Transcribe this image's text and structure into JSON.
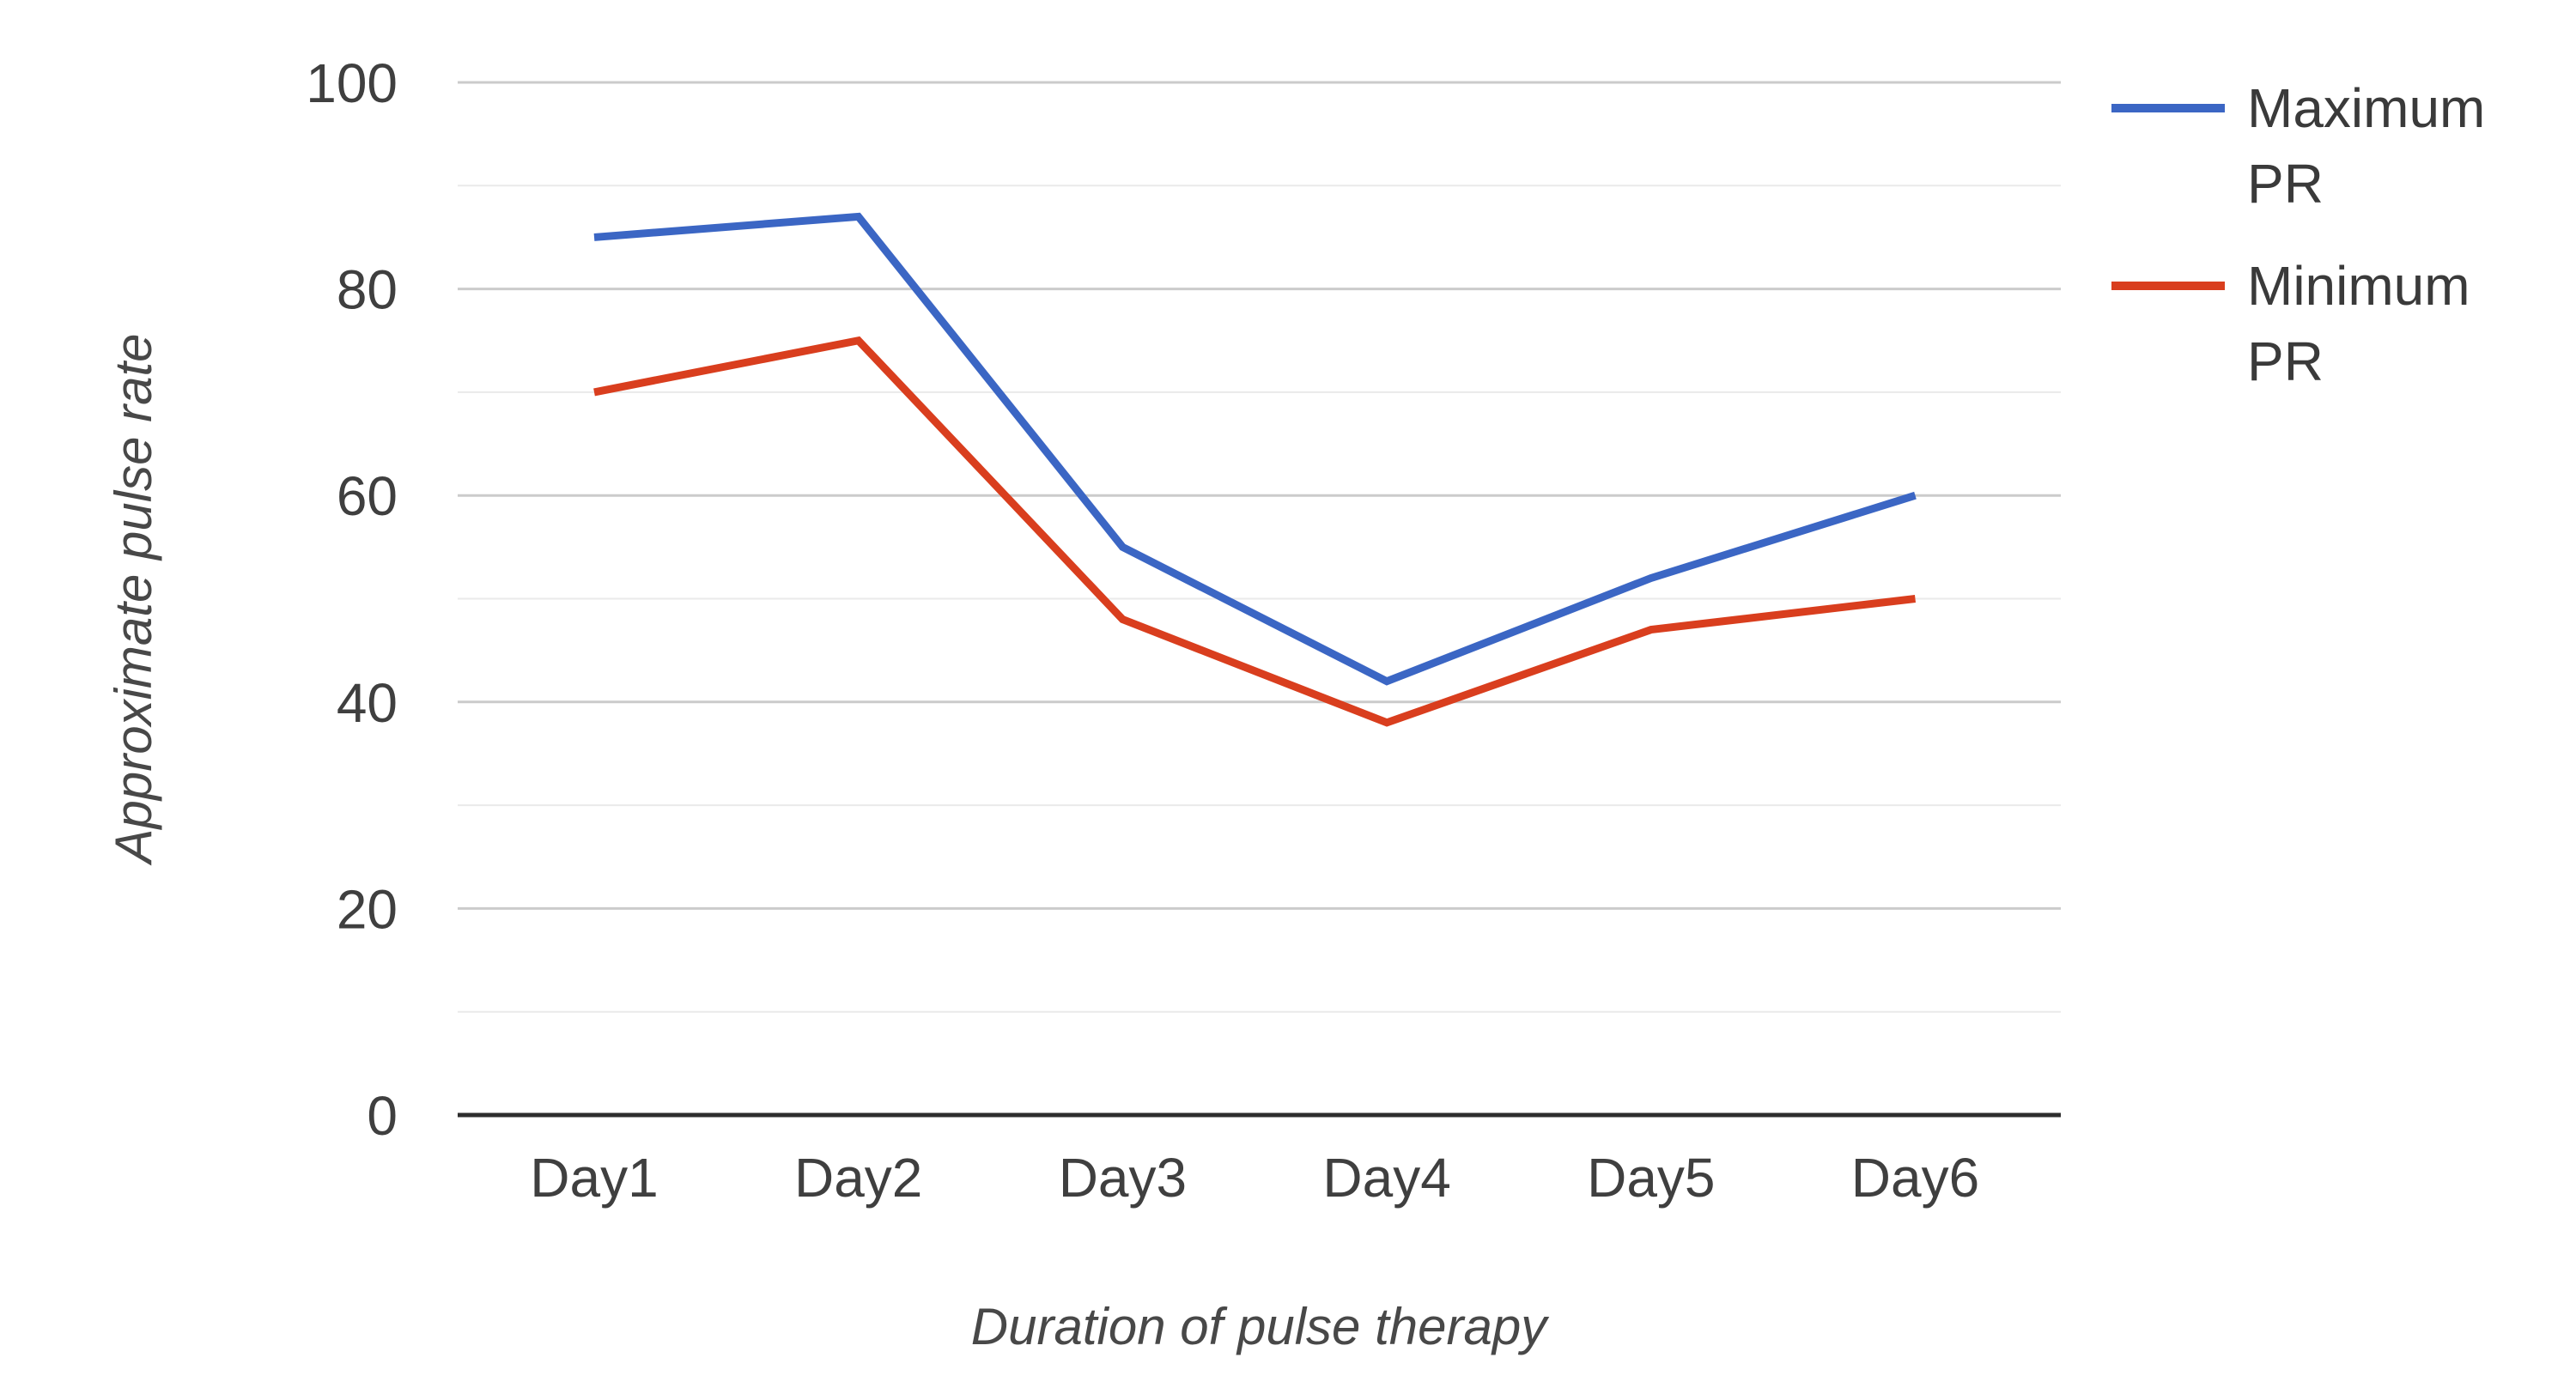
{
  "chart_data": {
    "type": "line",
    "categories": [
      "Day1",
      "Day2",
      "Day3",
      "Day4",
      "Day5",
      "Day6"
    ],
    "series": [
      {
        "name": "Maximum PR",
        "color": "#3B66C4",
        "values": [
          85,
          87,
          55,
          42,
          52,
          60
        ]
      },
      {
        "name": "Minimum PR",
        "color": "#D93E1E",
        "values": [
          70,
          75,
          48,
          38,
          47,
          50
        ]
      }
    ],
    "title": "",
    "xlabel": "Duration of pulse therapy",
    "ylabel": "Approximate pulse rate",
    "ylim": [
      0,
      100
    ],
    "y_major_ticks": [
      0,
      20,
      40,
      60,
      80,
      100
    ],
    "y_minor_step": 10,
    "grid": true,
    "legend_position": "right",
    "grid_major_color": "#cbcbcb",
    "grid_minor_color": "#eaeaea",
    "axis_line_color": "#2d2d2d",
    "tick_text_color": "#3f3f3f",
    "axis_title_color": "#484848",
    "legend_text_color": "#3a3a3a",
    "background_color": "#ffffff"
  }
}
